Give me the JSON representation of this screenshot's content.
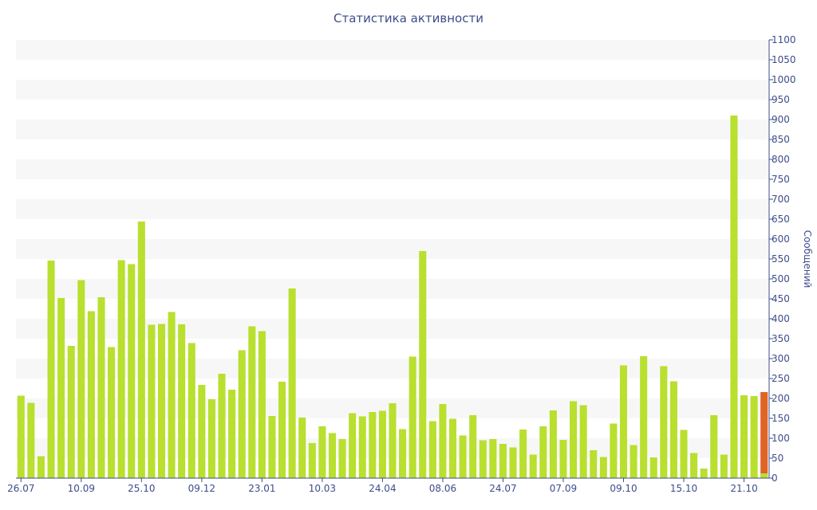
{
  "chart_data": {
    "type": "bar",
    "title": "Статистика активности",
    "ylabel": "Сообщений",
    "xlabel": "",
    "ylim": [
      0,
      1100
    ],
    "y_ticks": [
      0,
      50,
      100,
      150,
      200,
      250,
      300,
      350,
      400,
      450,
      500,
      550,
      600,
      650,
      700,
      750,
      800,
      850,
      900,
      950,
      1000,
      1050,
      1100
    ],
    "y_axis_position": "right",
    "grid": "alternating horizontal bands",
    "x_tick_labels": [
      {
        "label": "26.07",
        "index": 0
      },
      {
        "label": "10.09",
        "index": 6
      },
      {
        "label": "25.10",
        "index": 12
      },
      {
        "label": "09.12",
        "index": 18
      },
      {
        "label": "23.01",
        "index": 24
      },
      {
        "label": "10.03",
        "index": 30
      },
      {
        "label": "24.04",
        "index": 36
      },
      {
        "label": "08.06",
        "index": 42
      },
      {
        "label": "24.07",
        "index": 48
      },
      {
        "label": "07.09",
        "index": 54
      },
      {
        "label": "09.10",
        "index": 60
      },
      {
        "label": "15.10",
        "index": 66
      },
      {
        "label": "21.10",
        "index": 72
      }
    ],
    "values": [
      207,
      189,
      55,
      546,
      452,
      332,
      497,
      419,
      454,
      329,
      547,
      537,
      644,
      385,
      387,
      417,
      386,
      339,
      234,
      198,
      262,
      222,
      321,
      381,
      369,
      156,
      242,
      476,
      152,
      88,
      130,
      113,
      98,
      163,
      155,
      166,
      169,
      188,
      123,
      305,
      570,
      143,
      186,
      149,
      107,
      158,
      95,
      98,
      86,
      77,
      122,
      59,
      130,
      170,
      96,
      193,
      183,
      70,
      53,
      137,
      283,
      83,
      306,
      52,
      281,
      243,
      121,
      63,
      24,
      158,
      59,
      910,
      208,
      206,
      216
    ],
    "bar_color": "#b9df2f",
    "highlight_last": {
      "index": 74,
      "color": "#e06424",
      "base_value": 12,
      "base_color": "#b9df2f"
    },
    "band_color": "#f7f7f7",
    "axis_color": "#3e4c8a"
  }
}
